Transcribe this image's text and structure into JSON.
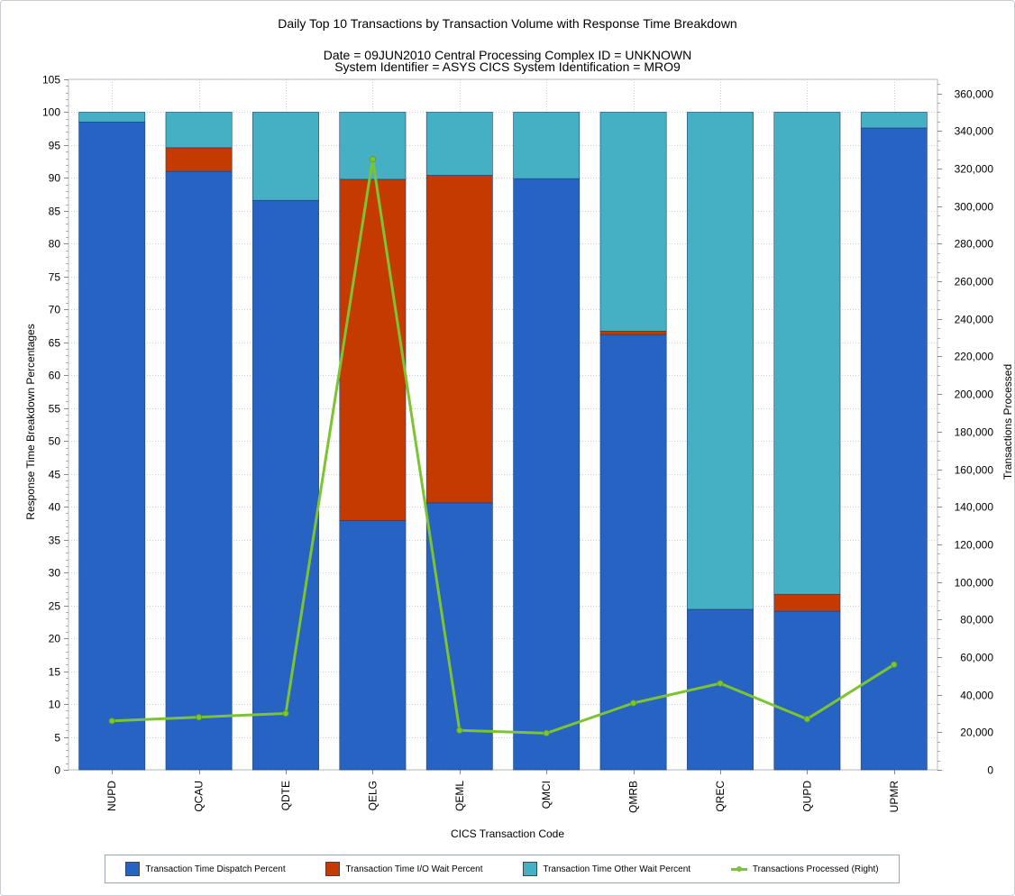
{
  "chart_data": {
    "type": "bar",
    "stacked": true,
    "title": "Daily Top 10 Transactions by Transaction Volume with Response Time Breakdown",
    "subtitle_lines": [
      "Date = 09JUN2010  Central Processing Complex ID = UNKNOWN",
      "System Identifier = ASYS  CICS System Identification = MRO9"
    ],
    "xlabel": "CICS Transaction Code",
    "ylabel": "Response Time Breakdown Percentages",
    "y2label": "Transactions Processed",
    "categories": [
      "NUPD",
      "QCAU",
      "QDTE",
      "QELG",
      "QEML",
      "QMCI",
      "QMRB",
      "QREC",
      "QUPD",
      "UPMR"
    ],
    "ylim": [
      0,
      105
    ],
    "ytick_step": 5,
    "y2lim": [
      0,
      367500
    ],
    "y2ticks": [
      "0",
      "20,000",
      "40,000",
      "60,000",
      "80,000",
      "100,000",
      "120,000",
      "140,000",
      "160,000",
      "180,000",
      "200,000",
      "220,000",
      "240,000",
      "260,000",
      "280,000",
      "300,000",
      "320,000",
      "340,000",
      "360,000"
    ],
    "series": [
      {
        "name": "Transaction Time Dispatch Percent",
        "color": "#2663c2",
        "axis": "left",
        "values": [
          98.5,
          91.0,
          86.6,
          37.9,
          40.6,
          89.9,
          66.2,
          24.4,
          24.1,
          97.6
        ]
      },
      {
        "name": "Transaction Time I/O Wait Percent",
        "color": "#c43a00",
        "axis": "left",
        "values": [
          0.0,
          3.6,
          0.0,
          51.9,
          49.8,
          0.0,
          0.5,
          0.0,
          2.6,
          0.0
        ]
      },
      {
        "name": "Transaction Time Other Wait Percent",
        "color": "#45b0c4",
        "axis": "left",
        "values": [
          1.5,
          5.4,
          13.4,
          10.2,
          9.6,
          10.1,
          33.3,
          75.6,
          73.3,
          2.4
        ]
      },
      {
        "name": "Transactions Processed (Right)",
        "color": "#7cc431",
        "axis": "right",
        "type": "line",
        "values": [
          26000,
          28000,
          30000,
          325000,
          21000,
          19500,
          35500,
          46000,
          27000,
          56000
        ]
      }
    ],
    "grid": true,
    "legend_position": "bottom"
  }
}
